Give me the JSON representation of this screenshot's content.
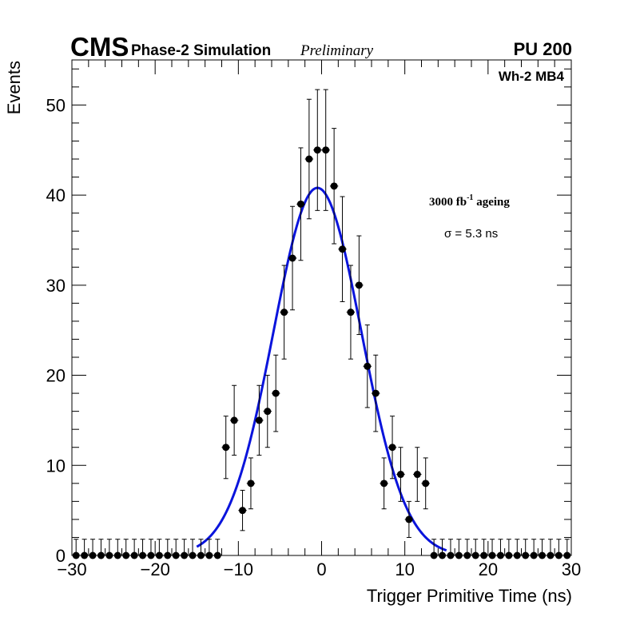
{
  "header": {
    "experiment": "CMS",
    "simulation": "Phase-2 Simulation",
    "status": "Preliminary",
    "pileup": "PU 200"
  },
  "chamber_label": "Wh-2 MB4",
  "ageing": {
    "value": "3000 fb",
    "exponent": "-1",
    "suffix": " ageing"
  },
  "sigma_label": "σ = 5.3 ns",
  "chart_data": {
    "type": "scatter",
    "title": "",
    "xlabel": "Trigger Primitive Time (ns)",
    "ylabel": "Events",
    "xlim": [
      -30,
      30
    ],
    "ylim": [
      0,
      55
    ],
    "x_ticks": [
      -30,
      -20,
      -10,
      0,
      10,
      20,
      30
    ],
    "x_tick_labels": [
      "−30",
      "−20",
      "−10",
      "0",
      "10",
      "20",
      "30"
    ],
    "y_ticks": [
      0,
      10,
      20,
      30,
      40,
      50
    ],
    "y_tick_labels": [
      "0",
      "10",
      "20",
      "30",
      "40",
      "50"
    ],
    "bin_width": 1,
    "series": [
      {
        "name": "data",
        "x": [
          -30,
          -29,
          -28,
          -27,
          -26,
          -25,
          -24,
          -23,
          -22,
          -21,
          -20,
          -19,
          -18,
          -17,
          -16,
          -15,
          -14,
          -13,
          -12,
          -11,
          -10,
          -9,
          -8,
          -7,
          -6,
          -5,
          -4,
          -3,
          -2,
          -1,
          0,
          1,
          2,
          3,
          4,
          5,
          6,
          7,
          8,
          9,
          10,
          11,
          12,
          13,
          14,
          15,
          16,
          17,
          18,
          19,
          20,
          21,
          22,
          23,
          24,
          25,
          26,
          27,
          28,
          29
        ],
        "values": [
          0,
          0,
          0,
          0,
          0,
          0,
          0,
          0,
          0,
          0,
          0,
          0,
          0,
          0,
          0,
          0,
          0,
          0,
          12,
          15,
          5,
          8,
          15,
          16,
          18,
          27,
          33,
          39,
          44,
          45,
          45,
          41,
          34,
          27,
          30,
          21,
          18,
          8,
          12,
          9,
          4,
          9,
          8,
          0,
          0,
          0,
          0,
          0,
          0,
          0,
          0,
          0,
          0,
          0,
          0,
          0,
          0,
          0,
          0,
          0
        ]
      },
      {
        "name": "gaussian fit",
        "type": "line",
        "color": "#0a14dc",
        "amplitude": 40.8,
        "mean": -0.5,
        "sigma": 5.3
      }
    ]
  }
}
